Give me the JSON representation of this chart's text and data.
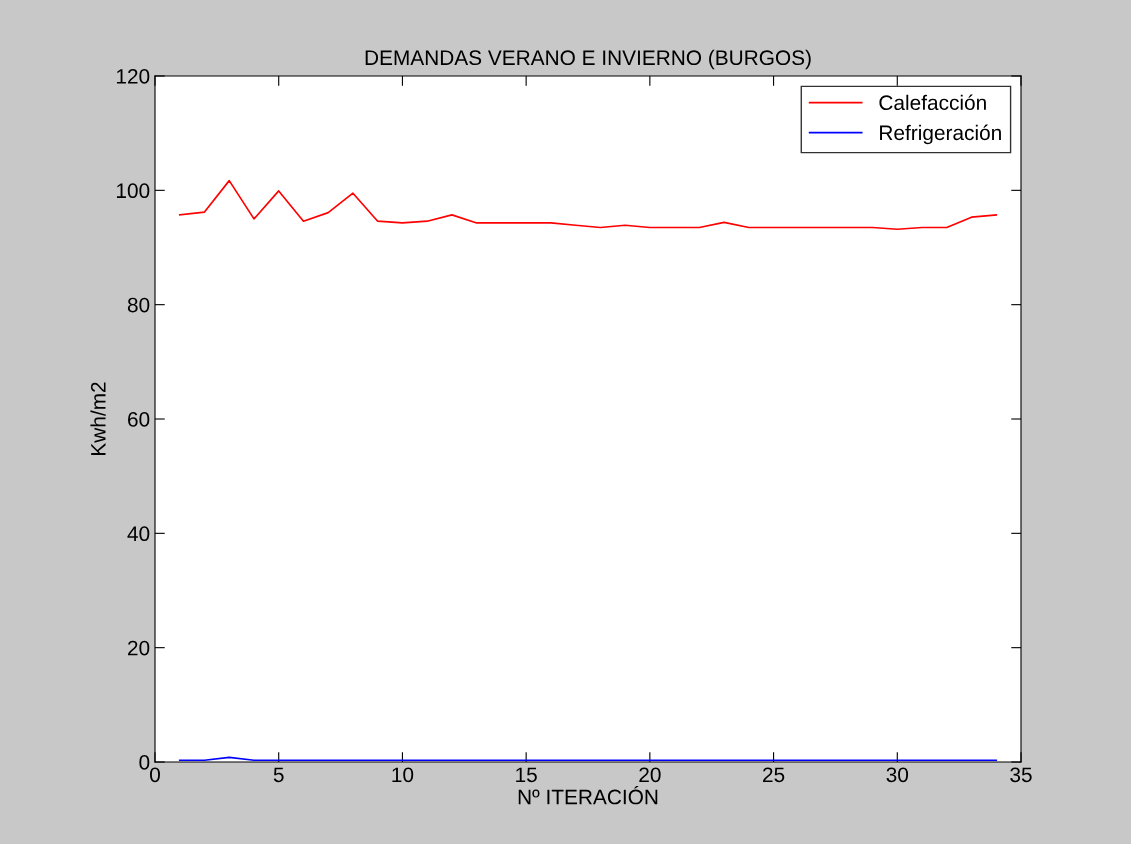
{
  "chart_data": {
    "type": "line",
    "title": "DEMANDAS VERANO E INVIERNO (BURGOS)",
    "xlabel": "Nº ITERACIÓN",
    "ylabel": "Kwh/m2",
    "x": [
      1,
      2,
      3,
      4,
      5,
      6,
      7,
      8,
      9,
      10,
      11,
      12,
      13,
      14,
      15,
      16,
      17,
      18,
      19,
      20,
      21,
      22,
      23,
      24,
      25,
      26,
      27,
      28,
      29,
      30,
      31,
      32,
      33,
      34
    ],
    "series": [
      {
        "name": "Calefacción",
        "color": "#ff0000",
        "values": [
          95.7,
          96.2,
          101.7,
          95.0,
          99.9,
          94.6,
          96.1,
          99.5,
          94.6,
          94.3,
          94.6,
          95.7,
          94.3,
          94.3,
          94.3,
          94.3,
          93.9,
          93.5,
          93.9,
          93.5,
          93.5,
          93.5,
          94.4,
          93.5,
          93.5,
          93.5,
          93.5,
          93.5,
          93.5,
          93.2,
          93.5,
          93.5,
          95.3,
          95.7
        ]
      },
      {
        "name": "Refrigeración",
        "color": "#0000ff",
        "values": [
          0.3,
          0.3,
          0.8,
          0.3,
          0.3,
          0.3,
          0.3,
          0.3,
          0.3,
          0.3,
          0.3,
          0.3,
          0.3,
          0.3,
          0.3,
          0.3,
          0.3,
          0.3,
          0.3,
          0.3,
          0.3,
          0.3,
          0.3,
          0.3,
          0.3,
          0.3,
          0.3,
          0.3,
          0.3,
          0.3,
          0.3,
          0.3,
          0.3,
          0.3
        ]
      }
    ],
    "xlim": [
      0,
      35
    ],
    "xticks": [
      0,
      5,
      10,
      15,
      20,
      25,
      30,
      35
    ],
    "ylim": [
      0,
      120
    ],
    "yticks": [
      0,
      20,
      40,
      60,
      80,
      100,
      120
    ],
    "grid": false,
    "legend": "top right",
    "marker": "none",
    "line_style": "solid"
  }
}
